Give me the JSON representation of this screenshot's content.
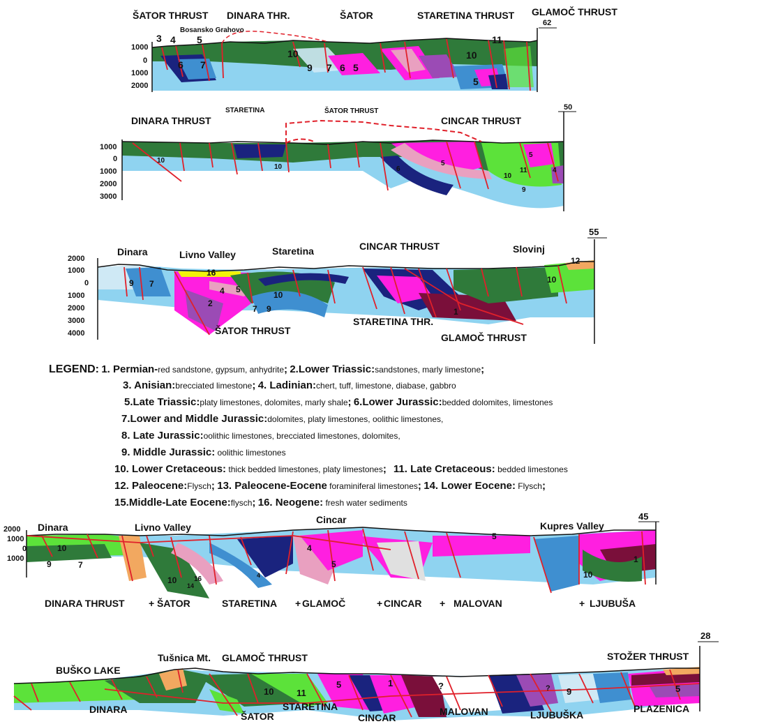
{
  "sections": [
    {
      "km_marker": "62",
      "labels": [
        "ŠATOR THRUST",
        "DINARA THR.",
        "ŠATOR",
        "STARETINA THRUST",
        "GLAMOČ THRUST"
      ],
      "small_label": "Bosansko Grahovo",
      "depth_ticks": [
        "1000",
        "0",
        "1000",
        "2000"
      ],
      "unit_numbers": [
        "3",
        "4",
        "5",
        "6",
        "7",
        "10",
        "9",
        "7",
        "6",
        "5",
        "11",
        "10",
        "5"
      ]
    },
    {
      "km_marker": "50",
      "labels": [
        "DINARA THRUST",
        "STARETINA",
        "ŠATOR THRUST",
        "CINCAR THRUST"
      ],
      "depth_ticks": [
        "1000",
        "0",
        "1000",
        "2000",
        "3000"
      ],
      "unit_numbers": [
        "10",
        "10",
        "6",
        "5",
        "5",
        "11",
        "10",
        "9",
        "4"
      ]
    },
    {
      "km_marker": "55",
      "labels": [
        "Dinara",
        "Livno Valley",
        "Staretina",
        "CINCAR THRUST",
        "Slovinj",
        "ŠATOR THRUST",
        "STARETINA THR.",
        "GLAMOČ THRUST"
      ],
      "depth_ticks": [
        "2000",
        "1000",
        "0",
        "1000",
        "2000",
        "3000",
        "4000"
      ],
      "unit_numbers": [
        "9",
        "7",
        "16",
        "4",
        "5",
        "2",
        "10",
        "7",
        "9",
        "1",
        "12",
        "10"
      ]
    },
    {
      "km_marker": "45",
      "labels": [
        "Dinara",
        "Livno Valley",
        "Cincar",
        "Kupres Valley",
        "DINARA THRUST",
        "ŠATOR",
        "STARETINA",
        "GLAMOČ",
        "CINCAR",
        "MALOVAN",
        "LJUBUŠA"
      ],
      "depth_ticks": [
        "2000",
        "1000",
        "0",
        "1000"
      ],
      "unit_numbers": [
        "10",
        "9",
        "7",
        "10",
        "16",
        "14",
        "4",
        "5",
        "5",
        "10",
        "1",
        "4"
      ]
    },
    {
      "km_marker": "28",
      "labels": [
        "BUŠKO LAKE",
        "Tušnica Mt.",
        "GLAMOČ THRUST",
        "STOŽER THRUST",
        "DINARA",
        "ŠATOR",
        "STARETINA",
        "CINCAR",
        "MALOVAN",
        "LJUBUŠKA",
        "PLAZENICA"
      ],
      "unit_numbers": [
        "10",
        "11",
        "5",
        "1",
        "?",
        "?",
        "9",
        "5"
      ]
    }
  ],
  "legend": {
    "title": "LEGEND:",
    "items": [
      {
        "head": "1. Permian-",
        "desc": "red sandstone, gypsum, anhydrite",
        "sep": ";"
      },
      {
        "head": "2.Lower Triassic:",
        "desc": "sandstones, marly limestone",
        "sep": ";"
      },
      {
        "head": "3. Anisian:",
        "desc": "brecciated limestone",
        "sep": ";"
      },
      {
        "head": "4. Ladinian:",
        "desc": "chert, tuff, limestone, diabase, gabbro",
        "sep": ""
      },
      {
        "head": "5.Late Triassic:",
        "desc": "platy limestones, dolomites, marly shale",
        "sep": ";"
      },
      {
        "head": "6.Lower Jurassic:",
        "desc": "bedded dolomites, limestones",
        "sep": ""
      },
      {
        "head": "7.Lower and Middle Jurassic:",
        "desc": "dolomites, platy limestones, oolithic limestones,",
        "sep": ""
      },
      {
        "head": "8. Late Jurassic:",
        "desc": "oolithic limestones, brecciated limestones, dolomites,",
        "sep": ""
      },
      {
        "head": "9. Middle Jurassic:",
        "desc": " oolithic limestones",
        "sep": ""
      },
      {
        "head": "10. Lower Cretaceous:",
        "desc": " thick bedded limestones, platy limestones",
        "sep": ";"
      },
      {
        "head": "11. Late Cretaceous:",
        "desc": " bedded limestones",
        "sep": ""
      },
      {
        "head": "12. Paleocene:",
        "desc": "Flysch",
        "sep": ";"
      },
      {
        "head": "13. Paleocene-Eocene",
        "desc": " foraminiferal limestones",
        "sep": ";"
      },
      {
        "head": "14. Lower Eocene:",
        "desc": " Flysch",
        "sep": ";"
      },
      {
        "head": "15.Middle-Late Eocene:",
        "desc": "flysch",
        "sep": ";"
      },
      {
        "head": "16. Neogene:",
        "desc": " fresh water sediments",
        "sep": ""
      }
    ]
  },
  "colors": {
    "dark_green": "#2f7a3a",
    "bright_green": "#5ce23a",
    "light_blue": "#8fd3f0",
    "mid_blue": "#3f8fd0",
    "navy": "#1a237e",
    "magenta": "#ff1fe0",
    "pink": "#e9a0c0",
    "purple": "#9b4bb5",
    "maroon": "#7a0f3a",
    "yellow": "#f2f20a",
    "orange": "#f2a860",
    "fault_red": "#e0202a"
  }
}
